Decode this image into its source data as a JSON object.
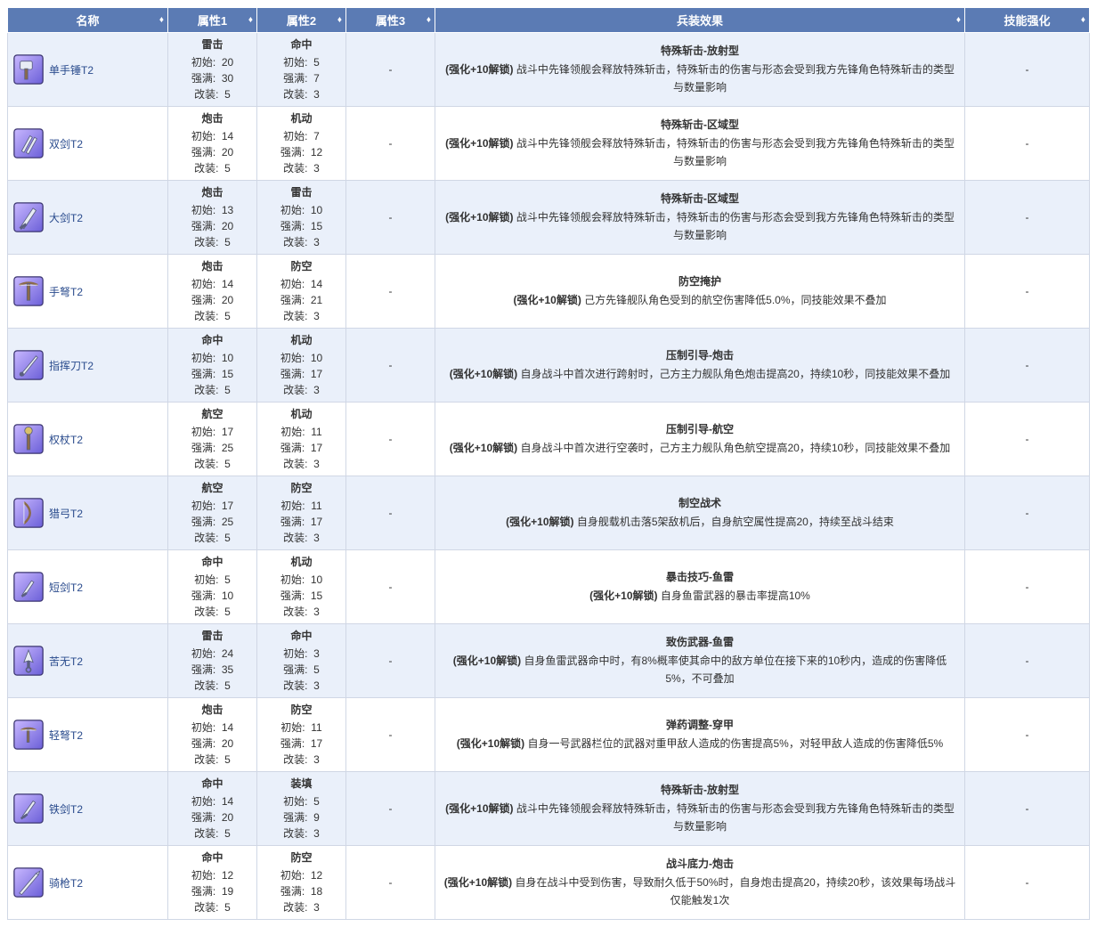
{
  "columns": {
    "name": "名称",
    "attr1": "属性1",
    "attr2": "属性2",
    "attr3": "属性3",
    "effect": "兵装效果",
    "skill": "技能强化"
  },
  "stat_labels": {
    "init": "初始",
    "max": "强满",
    "mod": "改装"
  },
  "unlock_label": "(强化+10解锁)",
  "dash": "-",
  "icon_bg_stops": [
    "#c9b8ff",
    "#6b5fd8"
  ],
  "icon_border": "#3b3570",
  "link_color": "#2a4b8d",
  "rows": [
    {
      "name": "单手锤T2",
      "attr1": {
        "head": "雷击",
        "init": 20,
        "max": 30,
        "mod": 5
      },
      "attr2": {
        "head": "命中",
        "init": 5,
        "max": 7,
        "mod": 3
      },
      "effect_title": "特殊斩击-放射型",
      "effect_body": "战斗中先锋领舰会释放特殊斩击，特殊斩击的伤害与形态会受到我方先锋角色特殊斩击的类型与数量影响",
      "icon": "hammer"
    },
    {
      "name": "双剑T2",
      "attr1": {
        "head": "炮击",
        "init": 14,
        "max": 20,
        "mod": 5
      },
      "attr2": {
        "head": "机动",
        "init": 7,
        "max": 12,
        "mod": 3
      },
      "effect_title": "特殊斩击-区域型",
      "effect_body": "战斗中先锋领舰会释放特殊斩击，特殊斩击的伤害与形态会受到我方先锋角色特殊斩击的类型与数量影响",
      "icon": "twin"
    },
    {
      "name": "大剑T2",
      "attr1": {
        "head": "炮击",
        "init": 13,
        "max": 20,
        "mod": 5
      },
      "attr2": {
        "head": "雷击",
        "init": 10,
        "max": 15,
        "mod": 3
      },
      "effect_title": "特殊斩击-区域型",
      "effect_body": "战斗中先锋领舰会释放特殊斩击，特殊斩击的伤害与形态会受到我方先锋角色特殊斩击的类型与数量影响",
      "icon": "greatsword"
    },
    {
      "name": "手弩T2",
      "attr1": {
        "head": "炮击",
        "init": 14,
        "max": 20,
        "mod": 5
      },
      "attr2": {
        "head": "防空",
        "init": 14,
        "max": 21,
        "mod": 3
      },
      "effect_title": "防空掩护",
      "effect_body": "己方先锋舰队角色受到的航空伤害降低5.0%，同技能效果不叠加",
      "icon": "crossbow"
    },
    {
      "name": "指挥刀T2",
      "attr1": {
        "head": "命中",
        "init": 10,
        "max": 15,
        "mod": 5
      },
      "attr2": {
        "head": "机动",
        "init": 10,
        "max": 17,
        "mod": 3
      },
      "effect_title": "压制引导-炮击",
      "effect_body": "自身战斗中首次进行跨射时，己方主力舰队角色炮击提高20，持续10秒，同技能效果不叠加",
      "icon": "saber"
    },
    {
      "name": "权杖T2",
      "attr1": {
        "head": "航空",
        "init": 17,
        "max": 25,
        "mod": 5
      },
      "attr2": {
        "head": "机动",
        "init": 11,
        "max": 17,
        "mod": 3
      },
      "effect_title": "压制引导-航空",
      "effect_body": "自身战斗中首次进行空袭时，己方主力舰队角色航空提高20，持续10秒，同技能效果不叠加",
      "icon": "scepter"
    },
    {
      "name": "猎弓T2",
      "attr1": {
        "head": "航空",
        "init": 17,
        "max": 25,
        "mod": 5
      },
      "attr2": {
        "head": "防空",
        "init": 11,
        "max": 17,
        "mod": 3
      },
      "effect_title": "制空战术",
      "effect_body": "自身舰载机击落5架敌机后，自身航空属性提高20，持续至战斗结束",
      "icon": "bow"
    },
    {
      "name": "短剑T2",
      "attr1": {
        "head": "命中",
        "init": 5,
        "max": 10,
        "mod": 5
      },
      "attr2": {
        "head": "机动",
        "init": 10,
        "max": 15,
        "mod": 3
      },
      "effect_title": "暴击技巧-鱼雷",
      "effect_body": "自身鱼雷武器的暴击率提高10%",
      "icon": "dagger"
    },
    {
      "name": "苦无T2",
      "attr1": {
        "head": "雷击",
        "init": 24,
        "max": 35,
        "mod": 5
      },
      "attr2": {
        "head": "命中",
        "init": 3,
        "max": 5,
        "mod": 3
      },
      "effect_title": "致伤武器-鱼雷",
      "effect_body": "自身鱼雷武器命中时，有8%概率使其命中的敌方单位在接下来的10秒内，造成的伤害降低5%，不可叠加",
      "icon": "kunai"
    },
    {
      "name": "轻弩T2",
      "attr1": {
        "head": "炮击",
        "init": 14,
        "max": 20,
        "mod": 5
      },
      "attr2": {
        "head": "防空",
        "init": 11,
        "max": 17,
        "mod": 3
      },
      "effect_title": "弹药调整-穿甲",
      "effect_body": "自身一号武器栏位的武器对重甲敌人造成的伤害提高5%，对轻甲敌人造成的伤害降低5%",
      "icon": "lightcrossbow"
    },
    {
      "name": "铁剑T2",
      "attr1": {
        "head": "命中",
        "init": 14,
        "max": 20,
        "mod": 5
      },
      "attr2": {
        "head": "装填",
        "init": 5,
        "max": 9,
        "mod": 3
      },
      "effect_title": "特殊斩击-放射型",
      "effect_body": "战斗中先锋领舰会释放特殊斩击，特殊斩击的伤害与形态会受到我方先锋角色特殊斩击的类型与数量影响",
      "icon": "ironsword"
    },
    {
      "name": "骑枪T2",
      "attr1": {
        "head": "命中",
        "init": 12,
        "max": 19,
        "mod": 5
      },
      "attr2": {
        "head": "防空",
        "init": 12,
        "max": 18,
        "mod": 3
      },
      "effect_title": "战斗底力-炮击",
      "effect_body": "自身在战斗中受到伤害，导致耐久低于50%时，自身炮击提高20，持续20秒，该效果每场战斗仅能触发1次",
      "icon": "lance"
    }
  ]
}
